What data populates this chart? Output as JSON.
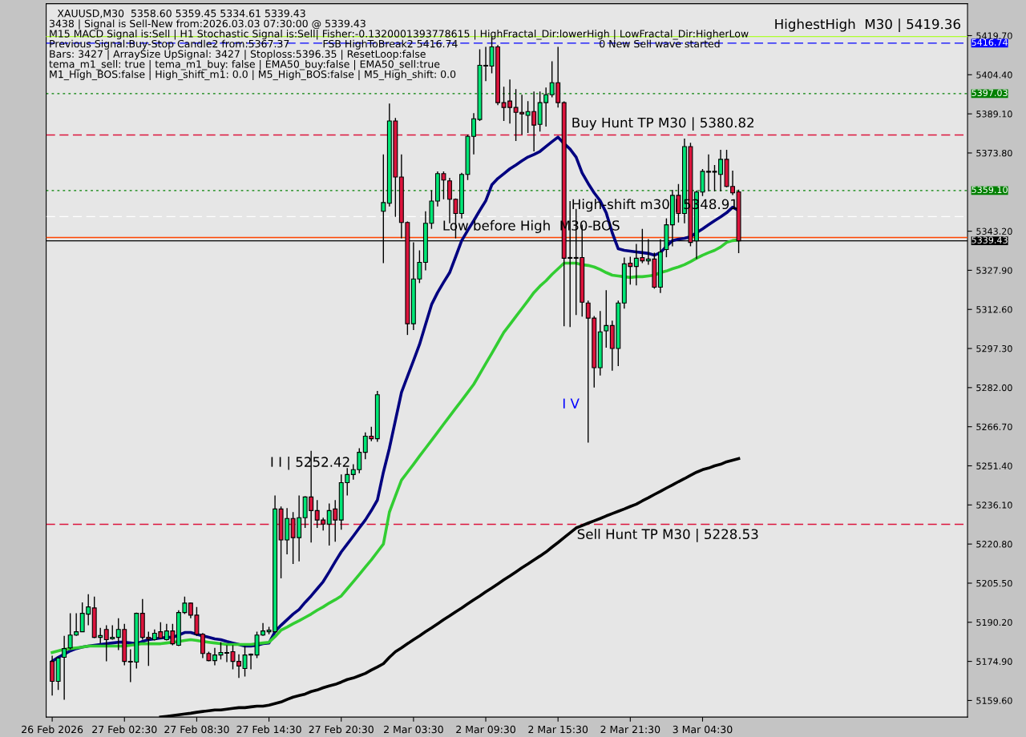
{
  "chart_data": {
    "type": "candlestick",
    "title": "XAUUSD,M30  5358.60 5359.45 5334.61 5339.43",
    "categories": [
      "26 Feb 2026",
      null,
      null,
      null,
      null,
      null,
      null,
      null,
      null,
      null,
      null,
      null,
      "27 Feb 02:30",
      null,
      null,
      null,
      null,
      null,
      null,
      null,
      null,
      null,
      null,
      null,
      "27 Feb 08:30",
      null,
      null,
      null,
      null,
      null,
      null,
      null,
      null,
      null,
      null,
      null,
      "27 Feb 14:30",
      null,
      null,
      null,
      null,
      null,
      null,
      null,
      null,
      null,
      null,
      null,
      "27 Feb 20:30",
      null,
      null,
      null,
      null,
      null,
      null,
      null,
      null,
      null,
      null,
      null,
      "2 Mar 03:30",
      null,
      null,
      null,
      null,
      null,
      null,
      null,
      null,
      null,
      null,
      null,
      "2 Mar 09:30",
      null,
      null,
      null,
      null,
      null,
      null,
      null,
      null,
      null,
      null,
      null,
      "2 Mar 15:30",
      null,
      null,
      null,
      null,
      null,
      null,
      null,
      null,
      null,
      null,
      null,
      "2 Mar 21:30",
      null,
      null,
      null,
      null,
      null,
      null,
      null,
      null,
      null,
      null,
      null,
      "3 Mar 04:30",
      null,
      null,
      null,
      null,
      null,
      null
    ],
    "ohlc": [
      [
        5174.9,
        5177.1,
        5161.5,
        5167.1
      ],
      [
        5167.1,
        5176.5,
        5163.7,
        5176.2
      ],
      [
        5176.5,
        5184.9,
        5159.9,
        5179.9
      ],
      [
        5180.2,
        5193.7,
        5179.6,
        5185.2
      ],
      [
        5185.2,
        5193.7,
        5184.9,
        5186.5
      ],
      [
        5186.5,
        5198.0,
        5186.5,
        5193.7
      ],
      [
        5193.4,
        5201.2,
        5189.0,
        5196.2
      ],
      [
        5195.8,
        5200.2,
        5184.0,
        5184.3
      ],
      [
        5184.3,
        5188.0,
        5182.0,
        5185.0
      ],
      [
        5187.4,
        5189.0,
        5174.9,
        5183.4
      ],
      [
        5183.7,
        5189.0,
        5183.4,
        5184.3
      ],
      [
        5184.3,
        5191.8,
        5179.3,
        5187.4
      ],
      [
        5187.4,
        5189.6,
        5173.4,
        5174.9
      ],
      [
        5174.9,
        5179.6,
        5166.8,
        5174.6
      ],
      [
        5174.6,
        5194.0,
        5172.1,
        5193.7
      ],
      [
        5193.7,
        5199.3,
        5183.4,
        5184.3
      ],
      [
        5184.3,
        5186.5,
        5173.1,
        5183.7
      ],
      [
        5183.4,
        5187.4,
        5183.1,
        5185.9
      ],
      [
        5186.5,
        5190.2,
        5183.7,
        5184.0
      ],
      [
        5183.4,
        5189.6,
        5183.1,
        5186.8
      ],
      [
        5186.8,
        5189.6,
        5181.2,
        5181.8
      ],
      [
        5181.2,
        5194.9,
        5180.9,
        5194.0
      ],
      [
        5194.0,
        5200.2,
        5193.4,
        5197.7
      ],
      [
        5197.7,
        5198.0,
        5191.8,
        5193.0
      ],
      [
        5193.0,
        5196.2,
        5184.9,
        5185.5
      ],
      [
        5185.5,
        5186.0,
        5176.2,
        5178.0
      ],
      [
        5178.0,
        5178.7,
        5174.9,
        5175.2
      ],
      [
        5175.2,
        5180.2,
        5173.4,
        5177.4
      ],
      [
        5177.4,
        5182.4,
        5175.6,
        5178.4
      ],
      [
        5178.4,
        5181.2,
        5174.6,
        5178.1
      ],
      [
        5178.7,
        5181.2,
        5171.8,
        5174.9
      ],
      [
        5174.9,
        5177.7,
        5168.4,
        5173.1
      ],
      [
        5172.1,
        5180.9,
        5169.0,
        5177.4
      ],
      [
        5177.4,
        5178.0,
        5171.8,
        5177.7
      ],
      [
        5177.4,
        5186.5,
        5176.2,
        5185.2
      ],
      [
        5185.2,
        5189.9,
        5184.9,
        5186.8
      ],
      [
        5186.5,
        5188.4,
        5185.5,
        5187.1
      ],
      [
        5186.5,
        5239.8,
        5186.2,
        5234.5
      ],
      [
        5234.5,
        5235.5,
        5207.4,
        5222.4
      ],
      [
        5222.4,
        5234.9,
        5216.8,
        5230.8
      ],
      [
        5230.8,
        5233.3,
        5213.0,
        5223.3
      ],
      [
        5223.3,
        5239.8,
        5214.0,
        5231.1
      ],
      [
        5231.1,
        5239.5,
        5227.1,
        5239.2
      ],
      [
        5239.2,
        5257.3,
        5221.4,
        5233.9
      ],
      [
        5233.9,
        5238.0,
        5227.1,
        5230.2
      ],
      [
        5230.2,
        5231.1,
        5226.1,
        5228.6
      ],
      [
        5228.6,
        5236.7,
        5220.2,
        5233.9
      ],
      [
        5234.5,
        5238.0,
        5221.7,
        5230.2
      ],
      [
        5230.2,
        5248.0,
        5226.4,
        5244.8
      ],
      [
        5244.8,
        5250.5,
        5239.8,
        5248.0
      ],
      [
        5248.0,
        5252.0,
        5246.0,
        5249.9
      ],
      [
        5249.9,
        5258.3,
        5248.5,
        5256.7
      ],
      [
        5256.7,
        5264.5,
        5254.0,
        5263.0
      ],
      [
        5263.0,
        5266.7,
        5261.0,
        5262.0
      ],
      [
        5262.0,
        5280.7,
        5260.8,
        5279.2
      ],
      [
        5351.0,
        5373.2,
        5330.7,
        5354.4
      ],
      [
        5354.1,
        5393.1,
        5352.9,
        5386.3
      ],
      [
        5386.3,
        5387.5,
        5348.8,
        5364.4
      ],
      [
        5364.4,
        5373.2,
        5340.4,
        5346.6
      ],
      [
        5346.6,
        5347.0,
        5302.6,
        5307.0
      ],
      [
        5307.0,
        5338.8,
        5304.5,
        5324.5
      ],
      [
        5324.5,
        5335.7,
        5322.9,
        5331.0
      ],
      [
        5331.0,
        5351.0,
        5327.9,
        5346.3
      ],
      [
        5346.3,
        5359.1,
        5344.1,
        5355.0
      ],
      [
        5355.0,
        5366.6,
        5352.9,
        5365.7
      ],
      [
        5365.7,
        5366.6,
        5355.7,
        5363.2
      ],
      [
        5362.9,
        5364.1,
        5346.3,
        5355.7
      ],
      [
        5355.7,
        5356.0,
        5340.4,
        5350.1
      ],
      [
        5350.1,
        5366.0,
        5348.2,
        5365.4
      ],
      [
        5365.4,
        5381.0,
        5363.2,
        5380.3
      ],
      [
        5380.3,
        5389.4,
        5373.2,
        5387.2
      ],
      [
        5386.9,
        5414.4,
        5386.3,
        5408.1
      ],
      [
        5408.1,
        5415.3,
        5401.9,
        5407.8
      ],
      [
        5407.8,
        5419.36,
        5405.0,
        5415.3
      ],
      [
        5415.3,
        5416.0,
        5392.5,
        5393.5
      ],
      [
        5393.5,
        5399.7,
        5386.3,
        5391.6
      ],
      [
        5394.1,
        5402.5,
        5385.3,
        5391.6
      ],
      [
        5391.6,
        5398.8,
        5378.5,
        5389.7
      ],
      [
        5389.7,
        5396.6,
        5381.0,
        5389.1
      ],
      [
        5388.5,
        5394.1,
        5381.6,
        5390.0
      ],
      [
        5390.0,
        5397.8,
        5374.4,
        5384.7
      ],
      [
        5385.0,
        5397.8,
        5382.2,
        5393.5
      ],
      [
        5393.5,
        5399.4,
        5384.1,
        5396.6
      ],
      [
        5396.6,
        5409.7,
        5395.6,
        5401.3
      ],
      [
        5401.3,
        5415.3,
        5391.6,
        5393.5
      ],
      [
        5393.5,
        5394.0,
        5306.0,
        5332.6
      ],
      [
        5332.6,
        5355.0,
        5305.7,
        5332.9
      ],
      [
        5332.9,
        5351.9,
        5310.4,
        5332.6
      ],
      [
        5332.9,
        5345.7,
        5309.8,
        5315.4
      ],
      [
        5315.1,
        5316.0,
        5260.5,
        5309.2
      ],
      [
        5309.2,
        5310.0,
        5282.0,
        5289.8
      ],
      [
        5289.8,
        5312.0,
        5286.7,
        5303.8
      ],
      [
        5304.2,
        5320.1,
        5297.6,
        5306.3
      ],
      [
        5306.3,
        5308.2,
        5288.6,
        5297.3
      ],
      [
        5297.3,
        5316.0,
        5290.4,
        5315.1
      ],
      [
        5315.1,
        5332.9,
        5312.9,
        5330.4
      ],
      [
        5330.7,
        5333.2,
        5322.3,
        5329.4
      ],
      [
        5329.4,
        5338.2,
        5322.0,
        5332.6
      ],
      [
        5332.9,
        5344.1,
        5330.7,
        5331.6
      ],
      [
        5331.6,
        5340.1,
        5330.1,
        5332.3
      ],
      [
        5332.3,
        5334.8,
        5320.7,
        5321.3
      ],
      [
        5321.3,
        5340.0,
        5319.0,
        5335.0
      ],
      [
        5336.0,
        5348.2,
        5333.0,
        5345.7
      ],
      [
        5345.7,
        5359.4,
        5337.3,
        5357.2
      ],
      [
        5357.2,
        5361.6,
        5346.6,
        5350.1
      ],
      [
        5350.1,
        5379.4,
        5346.3,
        5376.3
      ],
      [
        5376.3,
        5377.8,
        5337.3,
        5338.8
      ],
      [
        5339.4,
        5359.1,
        5332.3,
        5358.5
      ],
      [
        5358.5,
        5367.5,
        5356.9,
        5366.6
      ],
      [
        5366.6,
        5373.2,
        5358.8,
        5366.3
      ],
      [
        5366.3,
        5369.1,
        5358.8,
        5366.6
      ],
      [
        5365.4,
        5375.0,
        5358.8,
        5371.3
      ],
      [
        5371.3,
        5375.0,
        5360.4,
        5360.7
      ],
      [
        5360.7,
        5366.9,
        5357.3,
        5358.2
      ],
      [
        5358.6,
        5359.45,
        5334.61,
        5339.43
      ]
    ],
    "colors": [
      "#dc143c",
      "#00e676",
      "#00e676",
      "#00e676",
      "#00e676",
      "#00e676",
      "#00e676",
      "#dc143c",
      "#00e676",
      "#dc143c",
      "#00e676",
      "#00e676",
      "#dc143c",
      "#dc143c",
      "#00e676",
      "#dc143c",
      "#dc143c",
      "#00e676",
      "#dc143c",
      "#00e676",
      "#dc143c",
      "#00e676",
      "#00e676",
      "#dc143c",
      "#dc143c",
      "#dc143c",
      "#dc143c",
      "#00e676",
      "#00e676",
      "#dc143c",
      "#dc143c",
      "#dc143c",
      "#00e676",
      "#00e676",
      "#00e676",
      "#00e676",
      "#00e676",
      "#00e676",
      "#dc143c",
      "#00e676",
      "#dc143c",
      "#00e676",
      "#00e676",
      "#dc143c",
      "#dc143c",
      "#dc143c",
      "#00e676",
      "#dc143c",
      "#00e676",
      "#00e676",
      "#00e676",
      "#00e676",
      "#00e676",
      "#dc143c",
      "#00e676",
      "#00e676",
      "#00e676",
      "#dc143c",
      "#dc143c",
      "#dc143c",
      "#00e676",
      "#00e676",
      "#00e676",
      "#00e676",
      "#00e676",
      "#dc143c",
      "#dc143c",
      "#dc143c",
      "#00e676",
      "#00e676",
      "#00e676",
      "#00e676",
      "#dc143c",
      "#00e676",
      "#dc143c",
      "#dc143c",
      "#dc143c",
      "#dc143c",
      "#dc143c",
      "#00e676",
      "#dc143c",
      "#00e676",
      "#00e676",
      "#00e676",
      "#dc143c",
      "#dc143c",
      "#00e676",
      "#dc143c",
      "#dc143c",
      "#dc143c",
      "#dc143c",
      "#00e676",
      "#00e676",
      "#dc143c",
      "#00e676",
      "#00e676",
      "#dc143c",
      "#00e676",
      "#dc143c",
      "#00e676",
      "#dc143c",
      "#00e676",
      "#00e676",
      "#00e676",
      "#dc143c",
      "#00e676",
      "#dc143c",
      "#00e676",
      "#00e676",
      "#dc143c",
      "#00e676",
      "#00e676",
      "#dc143c",
      "#dc143c",
      "#dc143c"
    ],
    "series": [
      {
        "type": "line",
        "color": "#000080",
        "values": [
          5174.9,
          5176.5,
          5177.7,
          5179.0,
          5179.9,
          5180.5,
          5180.9,
          5181.2,
          5181.5,
          5181.8,
          5182.1,
          5182.4,
          5182.4,
          5182.1,
          5181.8,
          5182.7,
          5183.4,
          5183.7,
          5184.0,
          5184.3,
          5184.3,
          5185.2,
          5186.2,
          5186.2,
          5185.5,
          5184.9,
          5184.3,
          5183.7,
          5183.4,
          5182.7,
          5182.1,
          5181.5,
          5180.9,
          5180.9,
          5181.2,
          5181.8,
          5182.1,
          5186.5,
          5189.0,
          5191.2,
          5193.4,
          5195.2,
          5198.0,
          5200.5,
          5203.3,
          5206.1,
          5209.9,
          5213.9,
          5217.7,
          5220.8,
          5223.9,
          5227.1,
          5230.2,
          5233.9,
          5238.0,
          5248.9,
          5258.3,
          5269.2,
          5280.1,
          5286.4,
          5292.6,
          5298.9,
          5306.7,
          5314.5,
          5319.2,
          5323.2,
          5327.0,
          5333.2,
          5339.5,
          5343.5,
          5347.3,
          5351.3,
          5355.1,
          5361.3,
          5363.8,
          5365.7,
          5367.6,
          5369.1,
          5370.7,
          5372.2,
          5373.2,
          5374.4,
          5376.3,
          5378.2,
          5380.0,
          5377.5,
          5375.3,
          5372.2,
          5366.0,
          5361.9,
          5358.2,
          5355.1,
          5350.4,
          5342.6,
          5336.3,
          5335.7,
          5335.4,
          5335.1,
          5334.8,
          5334.5,
          5333.8,
          5334.8,
          5337.3,
          5339.5,
          5340.1,
          5340.4,
          5341.0,
          5342.6,
          5344.1,
          5345.7,
          5347.3,
          5348.8,
          5350.4,
          5352.6,
          5351.3
        ]
      },
      {
        "type": "line",
        "color": "#32cd32",
        "values": [
          5178.4,
          5179.0,
          5179.6,
          5179.9,
          5180.2,
          5180.5,
          5180.9,
          5180.9,
          5180.9,
          5180.9,
          5180.9,
          5180.9,
          5180.9,
          5181.2,
          5181.5,
          5181.8,
          5181.8,
          5181.8,
          5181.8,
          5182.1,
          5182.4,
          5182.7,
          5183.1,
          5183.4,
          5183.1,
          5182.7,
          5182.4,
          5182.1,
          5181.8,
          5181.5,
          5181.5,
          5181.5,
          5181.5,
          5181.5,
          5181.8,
          5182.1,
          5182.4,
          5184.6,
          5187.1,
          5188.3,
          5189.6,
          5190.8,
          5192.1,
          5193.4,
          5194.9,
          5196.2,
          5197.7,
          5199.0,
          5200.5,
          5203.3,
          5206.1,
          5208.9,
          5211.8,
          5214.6,
          5217.7,
          5220.8,
          5233.3,
          5239.6,
          5245.8,
          5248.9,
          5252.0,
          5255.2,
          5258.3,
          5261.4,
          5264.5,
          5267.7,
          5270.8,
          5273.9,
          5277.0,
          5280.1,
          5283.3,
          5287.3,
          5291.4,
          5295.4,
          5299.5,
          5303.6,
          5306.7,
          5309.8,
          5312.9,
          5316.0,
          5319.2,
          5321.7,
          5323.8,
          5326.3,
          5328.5,
          5330.7,
          5330.7,
          5330.7,
          5330.1,
          5329.8,
          5329.2,
          5328.2,
          5327.0,
          5326.0,
          5325.7,
          5325.4,
          5325.1,
          5325.4,
          5325.4,
          5325.7,
          5326.0,
          5327.0,
          5327.6,
          5328.5,
          5329.2,
          5330.1,
          5331.3,
          5332.6,
          5333.8,
          5334.8,
          5335.7,
          5337.0,
          5338.8,
          5339.5,
          5339.8
        ]
      },
      {
        "type": "line",
        "color": "#000000",
        "values": [
          null,
          null,
          null,
          null,
          null,
          null,
          null,
          null,
          null,
          null,
          null,
          null,
          null,
          null,
          null,
          null,
          null,
          null,
          5153.1,
          5153.4,
          5153.7,
          5154.0,
          5154.3,
          5154.6,
          5155.0,
          5155.3,
          5155.6,
          5155.9,
          5155.9,
          5156.2,
          5156.5,
          5156.8,
          5156.8,
          5157.1,
          5157.4,
          5157.4,
          5157.8,
          5158.4,
          5159.0,
          5160.0,
          5160.9,
          5161.5,
          5162.1,
          5163.1,
          5163.7,
          5164.6,
          5165.3,
          5165.9,
          5166.8,
          5167.8,
          5168.4,
          5169.3,
          5170.2,
          5171.5,
          5172.7,
          5174.0,
          5176.5,
          5178.7,
          5180.2,
          5181.8,
          5183.4,
          5184.9,
          5186.5,
          5188.0,
          5189.6,
          5191.2,
          5192.7,
          5194.3,
          5195.8,
          5197.4,
          5199.0,
          5200.5,
          5202.1,
          5203.6,
          5205.2,
          5206.8,
          5208.3,
          5209.9,
          5211.5,
          5213.0,
          5214.6,
          5216.1,
          5217.7,
          5219.6,
          5221.4,
          5223.3,
          5225.2,
          5227.1,
          5228.0,
          5229.0,
          5229.9,
          5230.8,
          5231.8,
          5232.7,
          5233.6,
          5234.5,
          5235.5,
          5236.4,
          5237.7,
          5238.9,
          5240.2,
          5241.4,
          5242.7,
          5243.9,
          5245.2,
          5246.4,
          5247.7,
          5248.9,
          5249.9,
          5250.5,
          5251.4,
          5252.0,
          5253.0,
          5253.6,
          5254.2
        ]
      }
    ],
    "ylim": [
      5153.1,
      5432.2
    ],
    "yticks": [
      {
        "value": 5419.7,
        "label": "5419.70"
      },
      {
        "value": 5404.4,
        "label": "5404.40"
      },
      {
        "value": 5389.1,
        "label": "5389.10"
      },
      {
        "value": 5373.8,
        "label": "5373.80"
      },
      {
        "value": 5343.2,
        "label": "5343.20"
      },
      {
        "value": 5327.9,
        "label": "5327.90"
      },
      {
        "value": 5312.6,
        "label": "5312.60"
      },
      {
        "value": 5297.3,
        "label": "5297.30"
      },
      {
        "value": 5282.0,
        "label": "5282.00"
      },
      {
        "value": 5266.7,
        "label": "5266.70"
      },
      {
        "value": 5251.4,
        "label": "5251.40"
      },
      {
        "value": 5236.1,
        "label": "5236.10"
      },
      {
        "value": 5220.8,
        "label": "5220.80"
      },
      {
        "value": 5205.5,
        "label": "5205.50"
      },
      {
        "value": 5190.2,
        "label": "5190.20"
      },
      {
        "value": 5174.9,
        "label": "5174.90"
      },
      {
        "value": 5159.6,
        "label": "5159.60"
      }
    ],
    "ref_lines": [
      {
        "axis": "y",
        "value": 5416.74,
        "label": "5416.74",
        "color": "#0000ff",
        "line_style": "dashed"
      },
      {
        "axis": "y",
        "value": 5397.03,
        "label": "5397.03",
        "color": "#008000",
        "line_style": "dotted"
      },
      {
        "axis": "y",
        "value": 5359.1,
        "label": "5359.10",
        "color": "#008000",
        "line_style": "dotted"
      },
      {
        "axis": "y",
        "value": 5339.43,
        "label": "5339.43",
        "color": "#000000",
        "line_style": "solid"
      },
      {
        "axis": "y",
        "value": 5419.36,
        "color": "#adff2f",
        "line_style": "solid"
      },
      {
        "axis": "y",
        "value": 5380.82,
        "color": "#dc143c",
        "line_style": "dashed"
      },
      {
        "axis": "y",
        "value": 5348.91,
        "color": "#ffffff",
        "line_style": "dashed"
      },
      {
        "axis": "y",
        "value": 5340.7,
        "color": "#ff4500",
        "line_style": "solid"
      },
      {
        "axis": "y",
        "value": 5228.53,
        "color": "#dc143c",
        "line_style": "dashed"
      }
    ],
    "annotations": [
      "3438 | Signal is Sell-New from:2026.03.03 07:30:00 @ 5339.43",
      "M15 MACD Signal is:Sell | H1 Stochastic Signal is:Sell| Fisher:-0.1320001393778615 | HighFractal_Dir:lowerHigh | LowFractal_Dir:HigherLow",
      "Previous Signal:Buy-Stop Candle2 from:5367.37",
      "Bars: 3427 | ArraySize UpSignal: 3427 | Stoploss:5396.35 | ResetLoop:false",
      "tema_m1_sell: true | tema_m1_buy: false | EMA50_buy:false | EMA50_sell:true",
      "M1_High_BOS:false | High_shift_m1: 0.0 | M5_High_BOS:false | M5_High_shift: 0.0",
      "FSB HighToBreak2 5416.74",
      "0 New Sell wave started",
      {
        "text": "HighestHigh  M30 | 5419.36",
        "y": 5419.36
      },
      {
        "text": "Buy Hunt TP M30 | 5380.82",
        "y": 5380.82
      },
      {
        "text": "High-shift m30 | 5348.91",
        "y": 5348.91
      },
      {
        "text": "Low before High  M30-BOS",
        "y": 5340.7
      },
      {
        "text": "I I | 5252.42",
        "y": 5252.42
      },
      "I V",
      {
        "text": "Sell Hunt TP M30 | 5228.53",
        "y": 5228.53
      }
    ],
    "grid": false,
    "legend": false
  }
}
